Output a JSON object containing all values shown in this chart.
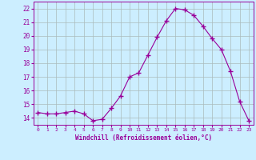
{
  "x": [
    0,
    1,
    2,
    3,
    4,
    5,
    6,
    7,
    8,
    9,
    10,
    11,
    12,
    13,
    14,
    15,
    16,
    17,
    18,
    19,
    20,
    21,
    22,
    23
  ],
  "y": [
    14.4,
    14.3,
    14.3,
    14.4,
    14.5,
    14.3,
    13.8,
    13.9,
    14.7,
    15.6,
    17.0,
    17.3,
    18.6,
    19.9,
    21.1,
    22.0,
    21.9,
    21.5,
    20.7,
    19.8,
    19.0,
    17.4,
    15.2,
    13.8
  ],
  "line_color": "#990099",
  "marker": "+",
  "marker_size": 4,
  "bg_color": "#cceeff",
  "grid_color": "#aabbbb",
  "xlabel": "Windchill (Refroidissement éolien,°C)",
  "xlabel_color": "#990099",
  "tick_color": "#990099",
  "ylim": [
    13.5,
    22.5
  ],
  "xlim": [
    -0.5,
    23.5
  ],
  "yticks": [
    14,
    15,
    16,
    17,
    18,
    19,
    20,
    21,
    22
  ],
  "xticks": [
    0,
    1,
    2,
    3,
    4,
    5,
    6,
    7,
    8,
    9,
    10,
    11,
    12,
    13,
    14,
    15,
    16,
    17,
    18,
    19,
    20,
    21,
    22,
    23
  ]
}
